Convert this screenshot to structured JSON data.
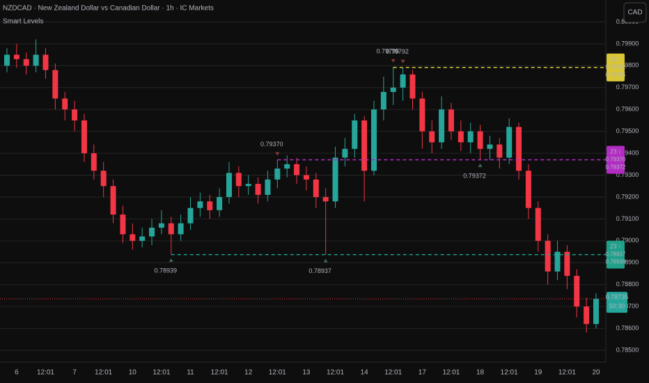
{
  "chart_data": {
    "type": "candlestick",
    "title": "NZDCAD · New Zealand Dollar vs Canadian Dollar · 1h · IC Markets",
    "indicator": "Smart Levels",
    "currency": "CAD",
    "categories": [
      null,
      "6",
      null,
      null,
      "12:01",
      null,
      null,
      "7",
      null,
      null,
      "12:01",
      null,
      null,
      "10",
      null,
      null,
      "12:01",
      null,
      null,
      "11",
      null,
      null,
      "12:01",
      null,
      null,
      "12",
      null,
      null,
      "12:01",
      null,
      null,
      "13",
      null,
      null,
      "12:01",
      null,
      null,
      "14",
      null,
      null,
      "12:01",
      null,
      null,
      "17",
      null,
      null,
      "12:01",
      null,
      null,
      "18",
      null,
      null,
      "12:01",
      null,
      null,
      "19",
      null,
      null,
      "12:01",
      null,
      null,
      "20"
    ],
    "open": [
      0.798,
      0.7985,
      0.7983,
      0.798,
      0.7985,
      0.7978,
      0.7965,
      0.796,
      0.7955,
      0.794,
      0.7932,
      0.7925,
      0.7912,
      0.7903,
      0.79,
      0.7902,
      0.7906,
      0.7908,
      0.7903,
      0.7908,
      0.7915,
      0.7918,
      0.7914,
      0.792,
      0.7931,
      0.7925,
      0.7926,
      0.7921,
      0.7928,
      0.7933,
      0.7935,
      0.793,
      0.7928,
      0.792,
      0.7918,
      0.7938,
      0.7942,
      0.7955,
      0.7932,
      0.796,
      0.7968,
      0.797,
      0.7976,
      0.7965,
      0.795,
      0.7945,
      0.796,
      0.795,
      0.7945,
      0.795,
      0.7942,
      0.7944,
      0.7938,
      0.7952,
      0.7932,
      0.7915,
      0.79,
      0.7886,
      0.7895,
      0.7884,
      0.787,
      0.7862
    ],
    "high": [
      0.7988,
      0.799,
      0.7986,
      0.7992,
      0.7988,
      0.7981,
      0.7968,
      0.7964,
      0.7958,
      0.7944,
      0.7936,
      0.7928,
      0.7916,
      0.7908,
      0.7906,
      0.791,
      0.7914,
      0.7911,
      0.7912,
      0.792,
      0.7922,
      0.7921,
      0.7924,
      0.7936,
      0.7934,
      0.793,
      0.7929,
      0.7932,
      0.7937,
      0.7939,
      0.7938,
      0.7934,
      0.7931,
      0.7924,
      0.7943,
      0.7947,
      0.7958,
      0.7957,
      0.7964,
      0.7975,
      0.79795,
      0.79792,
      0.7978,
      0.7968,
      0.7955,
      0.7966,
      0.7963,
      0.7955,
      0.7954,
      0.7953,
      0.7948,
      0.7947,
      0.7956,
      0.7954,
      0.7935,
      0.7918,
      0.7903,
      0.79,
      0.7898,
      0.7887,
      0.7874,
      0.7876
    ],
    "low": [
      0.7977,
      0.7979,
      0.7976,
      0.7977,
      0.7974,
      0.796,
      0.7955,
      0.795,
      0.7936,
      0.7928,
      0.792,
      0.7908,
      0.7899,
      0.7896,
      0.7897,
      0.7898,
      0.7903,
      0.78939,
      0.79,
      0.7905,
      0.7911,
      0.791,
      0.7911,
      0.7917,
      0.792,
      0.7921,
      0.7917,
      0.7918,
      0.7924,
      0.7929,
      0.7926,
      0.7923,
      0.7915,
      0.78937,
      0.7915,
      0.7934,
      0.7938,
      0.7918,
      0.793,
      0.7955,
      0.7962,
      0.7964,
      0.796,
      0.7942,
      0.794,
      0.7942,
      0.7946,
      0.7941,
      0.794,
      0.79372,
      0.7937,
      0.7933,
      0.7935,
      0.7928,
      0.791,
      0.7895,
      0.788,
      0.7882,
      0.7878,
      0.7865,
      0.7858,
      0.786
    ],
    "close": [
      0.7985,
      0.7983,
      0.798,
      0.7985,
      0.7978,
      0.7965,
      0.796,
      0.7955,
      0.794,
      0.7932,
      0.7925,
      0.7912,
      0.7903,
      0.79,
      0.7902,
      0.7906,
      0.7908,
      0.7903,
      0.7908,
      0.7915,
      0.7918,
      0.7914,
      0.792,
      0.7931,
      0.7925,
      0.7926,
      0.7921,
      0.7928,
      0.7933,
      0.7935,
      0.793,
      0.7928,
      0.792,
      0.7918,
      0.7938,
      0.7942,
      0.7955,
      0.7932,
      0.796,
      0.7968,
      0.797,
      0.7976,
      0.7965,
      0.795,
      0.7945,
      0.796,
      0.795,
      0.7945,
      0.795,
      0.7942,
      0.7944,
      0.7938,
      0.7952,
      0.7932,
      0.7915,
      0.79,
      0.7886,
      0.7895,
      0.7884,
      0.787,
      0.7862,
      0.78735
    ],
    "up_color": "#26a69a",
    "down_color": "#f23645",
    "ylim": [
      0.78446,
      0.801
    ],
    "yticks": [
      {
        "value": 0.785,
        "label": "0.78500"
      },
      {
        "value": 0.786,
        "label": "0.78600"
      },
      {
        "value": 0.787,
        "label": "0.78700"
      },
      {
        "value": 0.788,
        "label": "0.78800"
      },
      {
        "value": 0.789,
        "label": "0.78900"
      },
      {
        "value": 0.79,
        "label": "0.79000"
      },
      {
        "value": 0.791,
        "label": "0.79100"
      },
      {
        "value": 0.792,
        "label": "0.79200"
      },
      {
        "value": 0.793,
        "label": "0.79300"
      },
      {
        "value": 0.794,
        "label": "0.79400"
      },
      {
        "value": 0.795,
        "label": "0.79500"
      },
      {
        "value": 0.796,
        "label": "0.79600"
      },
      {
        "value": 0.797,
        "label": "0.79700"
      },
      {
        "value": 0.798,
        "label": "0.79800"
      },
      {
        "value": 0.799,
        "label": "0.79900"
      },
      {
        "value": 0.8,
        "label": "0.80000"
      }
    ],
    "grid": true,
    "levels": [
      {
        "name": "Z3 ↓",
        "color": "#d8c637",
        "values": [
          0.79792,
          0.79795
        ],
        "value_labels": [
          "0.79792",
          "0.79795"
        ]
      },
      {
        "name": "Z3 ↕",
        "color": "#b22cc4",
        "values": [
          0.7937,
          0.79372
        ],
        "value_labels": [
          "0.79370",
          "0.79372"
        ]
      },
      {
        "name": "Z3 ↑",
        "color": "#20a08a",
        "values": [
          0.78937,
          0.78939
        ],
        "value_labels": [
          "0.78937",
          "0.78939"
        ]
      }
    ],
    "last_price": {
      "value": 0.78735,
      "label": "0.78735"
    },
    "countdown": "50:30"
  }
}
